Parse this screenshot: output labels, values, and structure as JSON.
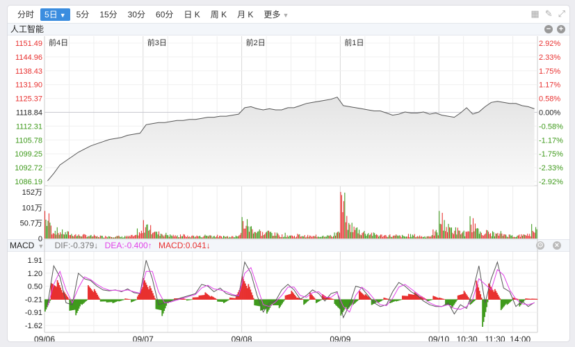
{
  "toolbar": {
    "tabs": [
      "分时",
      "5日",
      "5分",
      "15分",
      "30分",
      "60分",
      "日 K",
      "周 K",
      "月 K",
      "更多"
    ],
    "active": "5日"
  },
  "tools": [
    "grid-icon",
    "brush-icon",
    "fullscreen-icon"
  ],
  "title": "人工智能",
  "day_labels": [
    "前4日",
    "前3日",
    "前2日",
    "前1日"
  ],
  "price_axis_left": [
    "1151.49",
    "1144.96",
    "1138.43",
    "1131.90",
    "1125.37",
    "1118.84",
    "1112.31",
    "1105.78",
    "1099.25",
    "1092.72",
    "1086.19"
  ],
  "price_axis_right": [
    "2.92%",
    "2.33%",
    "1.75%",
    "1.17%",
    "0.58%",
    "0.00%",
    "-0.58%",
    "-1.17%",
    "-1.75%",
    "-2.33%",
    "-2.92%"
  ],
  "volume_axis": [
    "152万",
    "101万",
    "50.7万",
    "0"
  ],
  "macd_header": {
    "name": "MACD",
    "dif": "DIF:-0.379↓",
    "dea": "DEA:-0.400↑",
    "macd": "MACD:0.041↓"
  },
  "macd_axis": [
    "1.91",
    "1.20",
    "0.50",
    "-0.21",
    "-0.91",
    "-1.62"
  ],
  "x_labels": [
    "09/06",
    "09/07",
    "09/08",
    "09/09",
    "09/10",
    "10:30",
    "11:30",
    "14:00"
  ],
  "colors": {
    "up": "#e8302f",
    "down": "#3f9a1c",
    "price_line": "#555555",
    "dif": "#555555",
    "dea": "#e040e8",
    "accent": "#3b8ddf"
  },
  "chart_data": [
    {
      "type": "area",
      "name": "price",
      "base": 1118.84,
      "ylim": [
        1086.19,
        1151.49
      ],
      "values": [
        1086.5,
        1090,
        1094,
        1096,
        1098,
        1100,
        1101.5,
        1103,
        1104,
        1105,
        1106,
        1106.5,
        1107,
        1108,
        1108.5,
        1109,
        1113,
        1113.5,
        1114,
        1114,
        1114.5,
        1115,
        1115,
        1115.5,
        1115.5,
        1116,
        1116.5,
        1116.5,
        1117,
        1117,
        1117.5,
        1118,
        1121,
        1121.5,
        1120.5,
        1120,
        1120.5,
        1120,
        1120,
        1121,
        1121,
        1122,
        1123,
        1123.5,
        1124,
        1124.5,
        1125,
        1126,
        1122,
        1121.5,
        1121,
        1120.5,
        1120,
        1119.5,
        1119.5,
        1118.5,
        1117.5,
        1118,
        1119,
        1118.5,
        1118.5,
        1119,
        1118,
        1118.5,
        1117.5,
        1117,
        1116.5,
        1118.5,
        1121,
        1118,
        1119,
        1121.5,
        1123.5,
        1124,
        1123.5,
        1123,
        1123,
        1122,
        1121.5,
        1120.5
      ]
    },
    {
      "type": "bar",
      "name": "volume",
      "unit": "万",
      "ylim": [
        0,
        152
      ],
      "values": [
        90,
        40,
        30,
        25,
        20,
        15,
        15,
        12,
        10,
        10,
        12,
        10,
        8,
        10,
        12,
        30,
        60,
        45,
        25,
        20,
        15,
        12,
        15,
        10,
        12,
        10,
        15,
        12,
        10,
        10,
        12,
        20,
        70,
        50,
        35,
        25,
        30,
        20,
        15,
        15,
        12,
        15,
        12,
        10,
        12,
        15,
        12,
        25,
        152,
        60,
        45,
        30,
        25,
        20,
        15,
        15,
        12,
        12,
        10,
        15,
        12,
        10,
        12,
        30,
        90,
        50,
        40,
        30,
        25,
        70,
        35,
        30,
        25,
        20,
        20,
        15,
        12,
        15,
        20,
        45
      ]
    },
    {
      "type": "line+bar",
      "name": "MACD",
      "ylim": [
        -1.62,
        1.91
      ],
      "dif": [
        -0.5,
        1.6,
        1.0,
        -0.4,
        -0.5,
        1.2,
        0.9,
        0.8,
        0.5,
        0.3,
        0.25,
        0.3,
        0.2,
        0.35,
        0.15,
        0.1,
        1.9,
        0.9,
        -0.5,
        -0.4,
        -0.3,
        -0.2,
        -0.1,
        0.0,
        0.1,
        0.6,
        0.5,
        0.2,
        0.4,
        0.1,
        0.0,
        -0.05,
        1.8,
        1.2,
        0.0,
        -0.9,
        -0.4,
        -0.3,
        0.3,
        0.6,
        0.3,
        -0.2,
        0.0,
        0.3,
        0.1,
        -0.3,
        0.1,
        0.2,
        -1.2,
        -0.5,
        0.5,
        0.4,
        0.0,
        -0.4,
        -0.6,
        -0.5,
        0.2,
        0.7,
        0.5,
        0.2,
        0.0,
        -0.3,
        -0.5,
        -0.6,
        -0.6,
        -0.4,
        -1.0,
        -0.5,
        -0.7,
        0.2,
        1.6,
        -0.4,
        0.9,
        1.8,
        0.4,
        0.2,
        -0.6,
        -0.3,
        -0.6,
        -0.38
      ],
      "dea": [
        -0.6,
        0.6,
        1.3,
        0.3,
        -0.4,
        0.4,
        1.0,
        0.85,
        0.6,
        0.4,
        0.28,
        0.28,
        0.24,
        0.3,
        0.2,
        0.12,
        1.3,
        1.3,
        0.2,
        -0.4,
        -0.35,
        -0.25,
        -0.15,
        -0.05,
        0.05,
        0.4,
        0.55,
        0.35,
        0.3,
        0.2,
        0.05,
        -0.02,
        1.2,
        1.5,
        0.5,
        -0.5,
        -0.6,
        -0.35,
        0.0,
        0.45,
        0.45,
        0.0,
        -0.1,
        0.15,
        0.2,
        -0.1,
        -0.1,
        0.15,
        -0.6,
        -0.9,
        0.0,
        0.45,
        0.2,
        -0.2,
        -0.5,
        -0.55,
        -0.15,
        0.45,
        0.6,
        0.35,
        0.1,
        -0.15,
        -0.4,
        -0.55,
        -0.6,
        -0.5,
        -0.7,
        -0.75,
        -0.6,
        -0.2,
        0.9,
        0.6,
        0.3,
        1.4,
        1.1,
        0.3,
        -0.2,
        -0.45,
        -0.5,
        -0.4
      ],
      "hist": [
        -0.7,
        0.9,
        1.1,
        0.5,
        -0.6,
        -0.9,
        -0.3,
        0.8,
        0.6,
        -0.1,
        -0.15,
        -0.2,
        -0.1,
        0.05,
        -0.15,
        0.1,
        1.2,
        0.8,
        -0.5,
        -0.95,
        -0.2,
        0.05,
        0.1,
        -0.05,
        0.1,
        0.2,
        0.4,
        0.2,
        -0.1,
        -0.2,
        0.1,
        0.1,
        1.3,
        0.9,
        -0.3,
        -0.6,
        -0.8,
        -0.3,
        -0.5,
        0.2,
        0.5,
        0.1,
        -0.3,
        0.4,
        -0.2,
        0.3,
        0.1,
        -0.2,
        -0.9,
        -0.6,
        -0.3,
        0.5,
        0.3,
        -0.3,
        -0.2,
        0.1,
        -0.2,
        -0.1,
        0.2,
        0.3,
        0.4,
        0.2,
        -0.1,
        0.2,
        0.1,
        -0.3,
        -0.5,
        0.2,
        0.5,
        -0.3,
        1.1,
        -1.6,
        0.9,
        0.6,
        -0.6,
        -0.3,
        0.1,
        -0.4,
        0.05,
        0.04
      ]
    }
  ]
}
